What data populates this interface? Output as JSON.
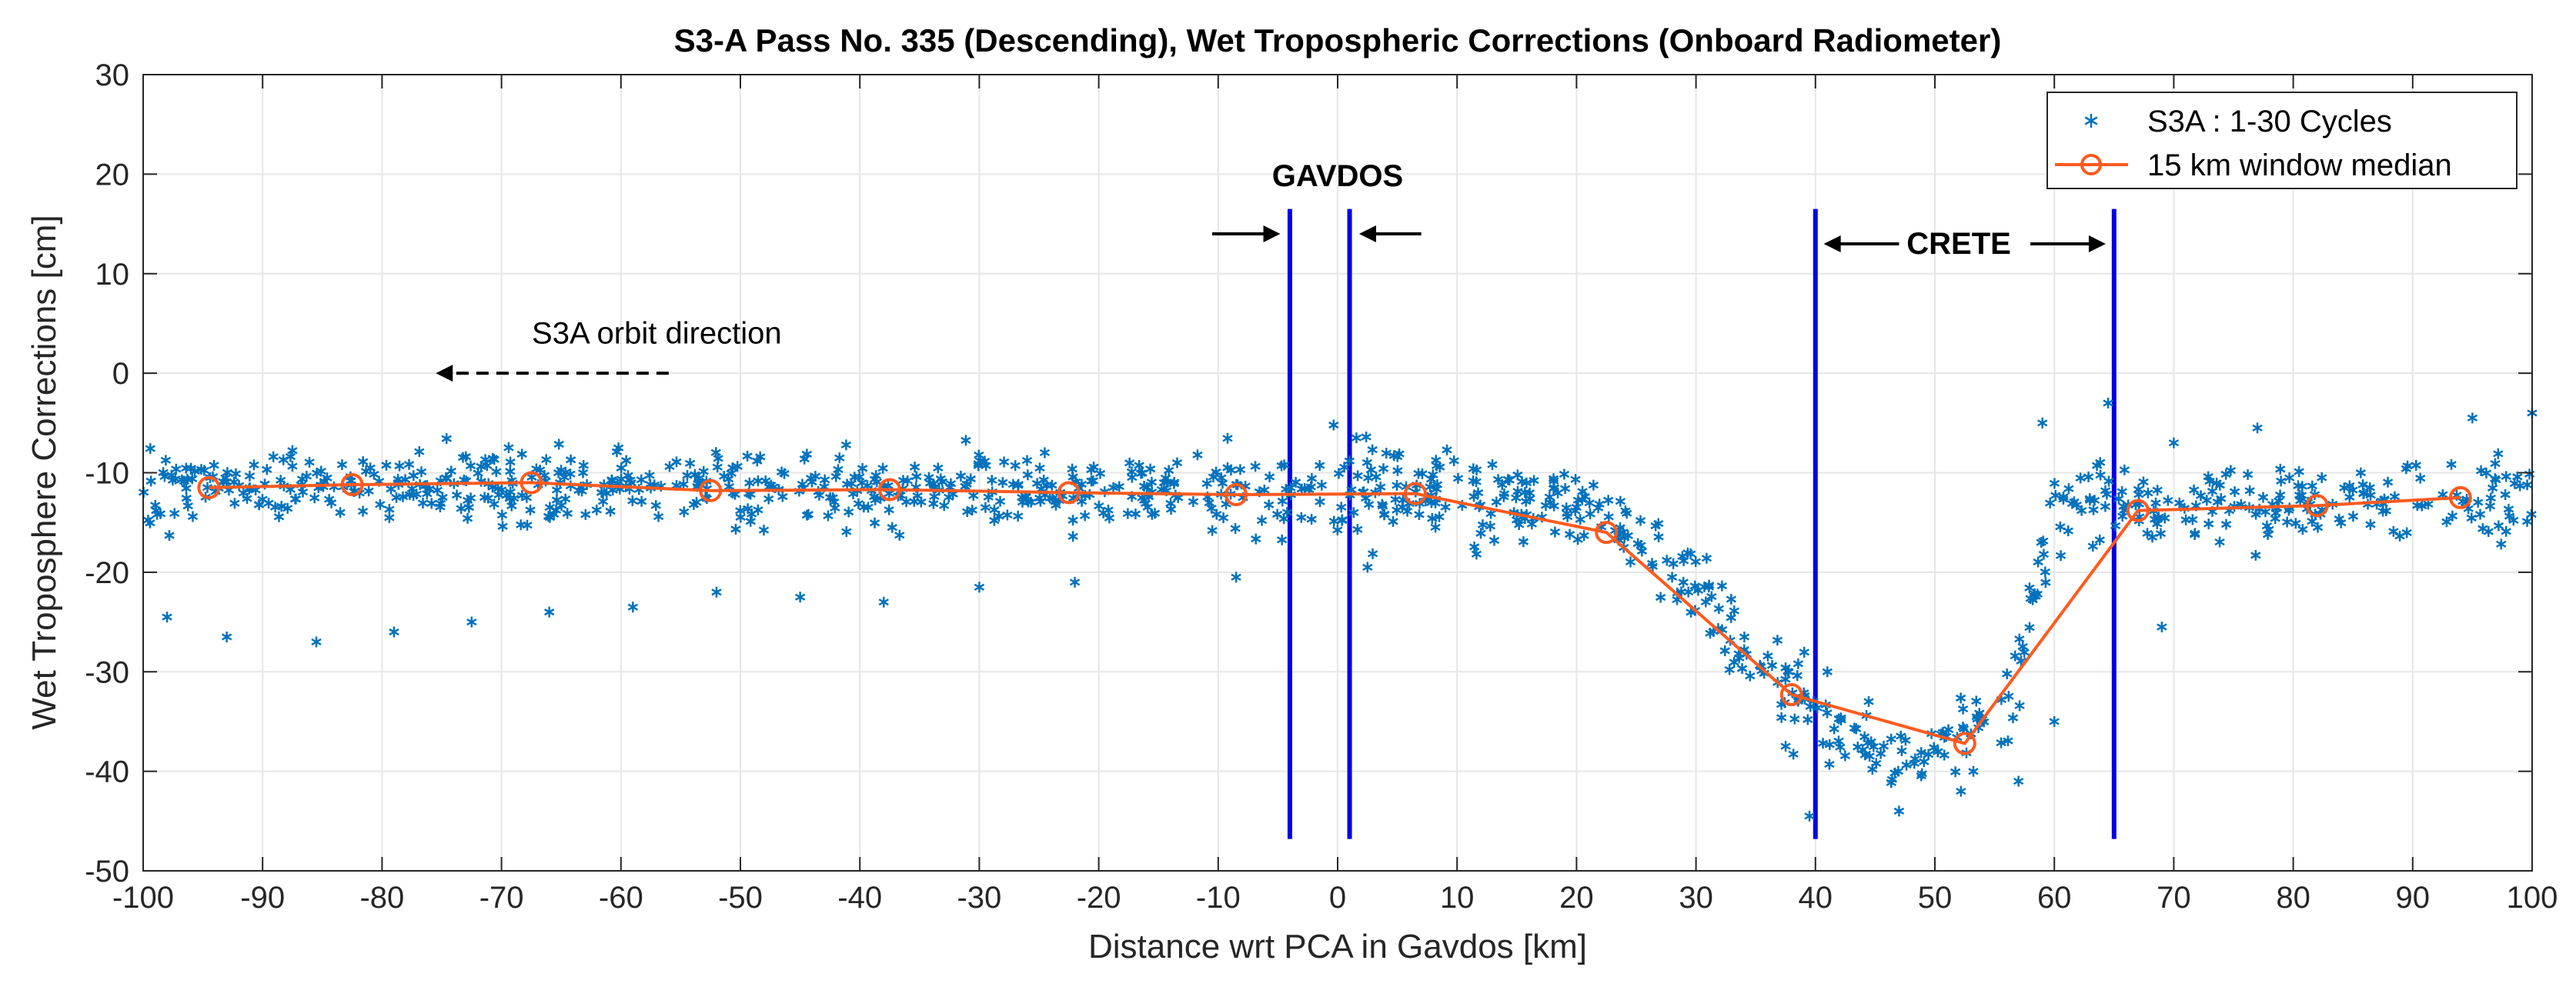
{
  "chart_data": {
    "type": "scatter",
    "title": "S3-A Pass No. 335 (Descending), Wet Tropospheric Corrections (Onboard Radiometer)",
    "xlabel": "Distance wrt PCA in Gavdos [km]",
    "ylabel": "Wet Troposphere Corrections [cm]",
    "xlim": [
      -100,
      100
    ],
    "ylim": [
      -50,
      30
    ],
    "xticks": [
      -100,
      -90,
      -80,
      -70,
      -60,
      -50,
      -40,
      -30,
      -20,
      -10,
      0,
      10,
      20,
      30,
      40,
      50,
      60,
      70,
      80,
      90,
      100
    ],
    "yticks": [
      -50,
      -40,
      -30,
      -20,
      -10,
      0,
      10,
      20,
      30
    ],
    "grid": true,
    "legend_position": "top-right",
    "series": [
      {
        "name": "S3A : 1-30 Cycles",
        "kind": "scatter",
        "marker": "asterisk",
        "color": "#0072BD",
        "envelope": {
          "x": [
            -100,
            -60,
            -30,
            -10,
            5,
            15,
            22,
            28,
            34,
            38,
            42,
            48,
            52,
            56,
            60,
            62,
            66,
            72,
            80,
            90,
            100
          ],
          "center": [
            -11.5,
            -11.3,
            -11.6,
            -12.0,
            -11.8,
            -12.3,
            -14.0,
            -19.0,
            -27.0,
            -32.5,
            -36.0,
            -38.5,
            -37.5,
            -33.0,
            -13.0,
            -13.0,
            -13.5,
            -13.2,
            -13.0,
            -12.8,
            -12.5
          ],
          "spread": [
            2.8,
            3.0,
            3.0,
            3.2,
            3.8,
            3.2,
            3.0,
            3.5,
            4.0,
            4.5,
            3.5,
            3.0,
            3.5,
            4.0,
            3.5,
            3.5,
            3.0,
            3.0,
            3.0,
            3.2,
            3.2
          ]
        },
        "point_count": 1100,
        "outliers": [
          [
            -98,
            -24.5
          ],
          [
            -93,
            -26.5
          ],
          [
            -85.5,
            -27
          ],
          [
            -79,
            -26
          ],
          [
            -72.5,
            -25
          ],
          [
            -66,
            -24
          ],
          [
            -59,
            -23.5
          ],
          [
            -52,
            -22
          ],
          [
            -45,
            -22.5
          ],
          [
            -38,
            -23
          ],
          [
            -30,
            -21.5
          ],
          [
            -22,
            -21
          ],
          [
            -8.5,
            -20.5
          ],
          [
            2.5,
            -19.5
          ],
          [
            28,
            -20.5
          ],
          [
            39.5,
            -44.5
          ],
          [
            41,
            -30
          ],
          [
            47,
            -44
          ],
          [
            57,
            -41
          ],
          [
            60,
            -35
          ],
          [
            59,
            -5
          ],
          [
            64.5,
            -3
          ],
          [
            69,
            -25.5
          ],
          [
            70,
            -7
          ],
          [
            77,
            -5.5
          ],
          [
            95,
            -4.5
          ],
          [
            100,
            -4
          ]
        ]
      },
      {
        "name": "15 km window median",
        "kind": "line",
        "marker": "circle",
        "color": "#FF5A1F",
        "x": [
          -94.5,
          -82.5,
          -67.5,
          -52.5,
          -37.5,
          -22.5,
          -8.5,
          6.5,
          22.5,
          38,
          52.5,
          67,
          82,
          94
        ],
        "y": [
          -11.5,
          -11.2,
          -11.0,
          -11.8,
          -11.7,
          -12.0,
          -12.2,
          -12.1,
          -16.0,
          -32.3,
          -37.2,
          -13.8,
          -13.3,
          -12.5
        ]
      }
    ],
    "vertical_lines": [
      {
        "x": -4,
        "color": "#0000E6"
      },
      {
        "x": 1,
        "color": "#0000E6"
      },
      {
        "x": 40,
        "color": "#0000E6"
      },
      {
        "x": 65,
        "color": "#0000E6"
      }
    ],
    "annotations": [
      {
        "text": "GAVDOS",
        "x": 0,
        "y": 18.8,
        "bold": true
      },
      {
        "text": "CRETE",
        "x": 52,
        "y": 12,
        "bold": true
      },
      {
        "text": "S3A orbit direction",
        "x": -57,
        "y": 3,
        "bold": false
      }
    ],
    "arrows": [
      {
        "from": [
          -10.5,
          14
        ],
        "to": [
          -4.8,
          14
        ],
        "style": "solid"
      },
      {
        "from": [
          7,
          14
        ],
        "to": [
          1.8,
          14
        ],
        "style": "solid"
      },
      {
        "from": [
          47,
          13
        ],
        "to": [
          40.7,
          13
        ],
        "style": "solid"
      },
      {
        "from": [
          58,
          13
        ],
        "to": [
          64.3,
          13
        ],
        "style": "solid"
      },
      {
        "from": [
          -56,
          0
        ],
        "to": [
          -75.5,
          0
        ],
        "style": "dashed"
      }
    ]
  }
}
